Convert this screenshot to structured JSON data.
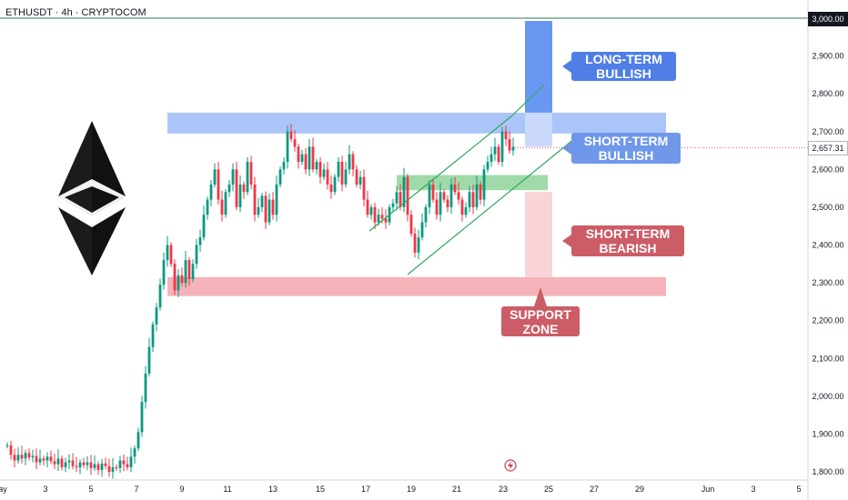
{
  "header": {
    "symbol": "ETHUSDT · 4h · CRYPTOCOM"
  },
  "axis": {
    "y_ticks": [
      "1,800.00",
      "1,900.00",
      "2,000.00",
      "2,100.00",
      "2,200.00",
      "2,300.00",
      "2,400.00",
      "2,500.00",
      "2,600.00",
      "2,700.00",
      "2,800.00",
      "2,900.00"
    ],
    "y_max_label": "3,000.00",
    "last_price_label": "2,657.31",
    "x_ticks": [
      "ay",
      "3",
      "5",
      "7",
      "9",
      "11",
      "13",
      "15",
      "17",
      "19",
      "21",
      "23",
      "25",
      "27",
      "29",
      "Jun",
      "3",
      "5"
    ]
  },
  "callouts": {
    "long_term_bullish": "LONG-TERM BULLISH",
    "short_term_bullish": "SHORT-TERM BULLISH",
    "short_term_bearish": "SHORT-TERM BEARISH",
    "support_zone": "SUPPORT ZONE"
  },
  "colors": {
    "up": "#089981",
    "down": "#f23645",
    "resistance_zone": "#8fb2f7",
    "support_zone": "#f4a6ad",
    "long_term_bullish_bar": "#4f86f0",
    "callout_blue": "#4f7ee6",
    "callout_red": "#cc5d67",
    "green_box": "#8fd49a",
    "channel": "#2eaa5a"
  },
  "icons": [
    "ethereum-logo",
    "flash-event-icon"
  ],
  "chart_data": {
    "type": "candlestick",
    "symbol": "ETHUSDT",
    "interval": "4h",
    "ylim": [
      1780,
      3000
    ],
    "last_price": 2657.31,
    "series_close": [
      1870,
      1845,
      1830,
      1845,
      1835,
      1850,
      1838,
      1842,
      1825,
      1835,
      1830,
      1840,
      1828,
      1820,
      1835,
      1812,
      1825,
      1830,
      1815,
      1812,
      1825,
      1818,
      1825,
      1810,
      1820,
      1805,
      1822,
      1815,
      1800,
      1812,
      1810,
      1830,
      1820,
      1812,
      1840,
      1862,
      1905,
      1985,
      2060,
      2130,
      2190,
      2235,
      2295,
      2360,
      2400,
      2350,
      2280,
      2320,
      2300,
      2360,
      2310,
      2350,
      2400,
      2420,
      2480,
      2520,
      2560,
      2600,
      2520,
      2480,
      2540,
      2560,
      2600,
      2500,
      2560,
      2540,
      2620,
      2560,
      2480,
      2500,
      2530,
      2460,
      2520,
      2480,
      2560,
      2600,
      2620,
      2700,
      2680,
      2660,
      2620,
      2640,
      2600,
      2660,
      2600,
      2620,
      2580,
      2600,
      2560,
      2540,
      2580,
      2620,
      2560,
      2600,
      2640,
      2600,
      2560,
      2580,
      2520,
      2480,
      2500,
      2460,
      2480,
      2470,
      2460,
      2500,
      2510,
      2540,
      2500,
      2580,
      2480,
      2430,
      2380,
      2420,
      2460,
      2500,
      2560,
      2520,
      2480,
      2540,
      2520,
      2500,
      2560,
      2540,
      2520,
      2480,
      2500,
      2540,
      2500,
      2560,
      2520,
      2600,
      2620,
      2640,
      2660,
      2620,
      2700,
      2680,
      2650,
      2660
    ],
    "zones": [
      {
        "name": "resistance zone",
        "low": 2695,
        "high": 2750
      },
      {
        "name": "support zone",
        "low": 2265,
        "high": 2315
      },
      {
        "name": "short-term bullish target",
        "low": 2580,
        "high": 2660
      },
      {
        "name": "short-term bearish target",
        "low": 2315,
        "high": 2540
      },
      {
        "name": "long-term bullish target",
        "low": 2750,
        "high": 3000
      }
    ],
    "x_ticks": [
      "ay",
      "3",
      "5",
      "7",
      "9",
      "11",
      "13",
      "15",
      "17",
      "19",
      "21",
      "23",
      "25",
      "27",
      "29",
      "Jun",
      "3",
      "5"
    ]
  }
}
